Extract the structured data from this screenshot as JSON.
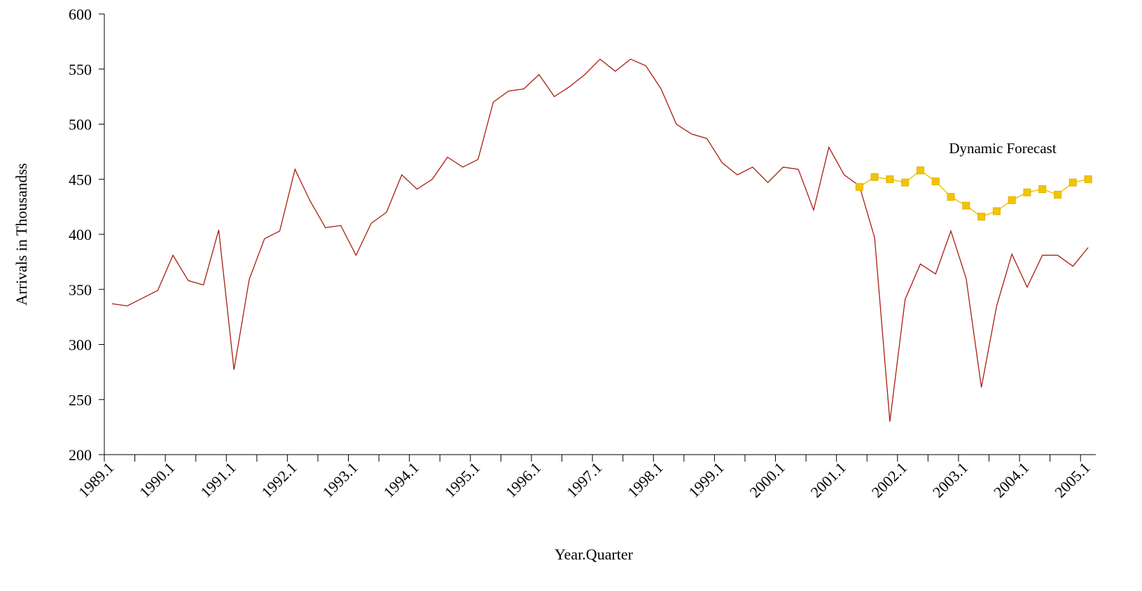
{
  "chart_data": {
    "type": "line",
    "ylabel": "Arrivals in Thousandss",
    "xlabel": "Year.Quarter",
    "annotation": "Dynamic Forecast",
    "ylim": [
      200,
      600
    ],
    "yticks": [
      200,
      250,
      300,
      350,
      400,
      450,
      500,
      550,
      600
    ],
    "categories": [
      "1989.1",
      null,
      null,
      null,
      "1990.1",
      null,
      null,
      null,
      "1991.1",
      null,
      null,
      null,
      "1992.1",
      null,
      null,
      null,
      "1993.1",
      null,
      null,
      null,
      "1994.1",
      null,
      null,
      null,
      "1995.1",
      null,
      null,
      null,
      "1996.1",
      null,
      null,
      null,
      "1997.1",
      null,
      null,
      null,
      "1998.1",
      null,
      null,
      null,
      "1999.1",
      null,
      null,
      null,
      "2000.1",
      null,
      null,
      null,
      "2001.1",
      null,
      null,
      null,
      "2002.1",
      null,
      null,
      null,
      "2003.1",
      null,
      null,
      null,
      "2004.1",
      null,
      null,
      null,
      "2005.1"
    ],
    "series": [
      {
        "color": "#a81e10",
        "marker": false,
        "values": [
          337,
          335,
          342,
          349,
          381,
          358,
          354,
          404,
          277,
          359,
          396,
          403,
          459,
          430,
          406,
          408,
          381,
          410,
          420,
          454,
          441,
          450,
          470,
          461,
          468,
          520,
          530,
          532,
          545,
          525,
          534,
          545,
          559,
          548,
          559,
          553,
          532,
          500,
          491,
          487,
          465,
          454,
          461,
          447,
          461,
          459,
          422,
          479,
          454,
          444,
          397,
          230,
          341,
          373,
          364,
          403,
          360,
          261,
          335,
          382,
          352,
          381,
          381,
          371,
          388
        ]
      },
      {
        "color": "#f2c500",
        "marker": true,
        "values": [
          null,
          null,
          null,
          null,
          null,
          null,
          null,
          null,
          null,
          null,
          null,
          null,
          null,
          null,
          null,
          null,
          null,
          null,
          null,
          null,
          null,
          null,
          null,
          null,
          null,
          null,
          null,
          null,
          null,
          null,
          null,
          null,
          null,
          null,
          null,
          null,
          null,
          null,
          null,
          null,
          null,
          null,
          null,
          null,
          null,
          null,
          null,
          null,
          null,
          443,
          452,
          450,
          447,
          458,
          448,
          434,
          426,
          416,
          421,
          431,
          438,
          441,
          436,
          447,
          450
        ]
      }
    ]
  }
}
